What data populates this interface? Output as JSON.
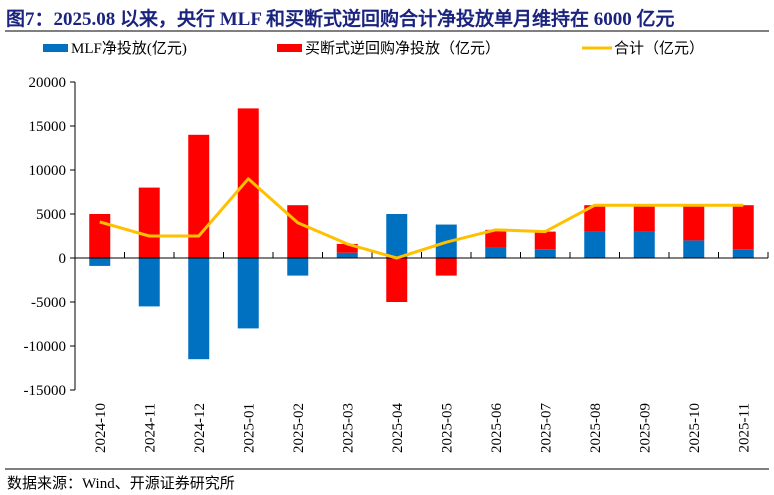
{
  "title": "图7：2025.08 以来，央行 MLF 和买断式逆回购合计净投放单月维持在 6000 亿元",
  "source": "数据来源：Wind、开源证券研究所",
  "chart_data": {
    "type": "bar",
    "stacked": true,
    "title": "",
    "xlabel": "",
    "ylabel": "",
    "ylim": [
      -15000,
      20000
    ],
    "yticks": [
      20000,
      15000,
      10000,
      5000,
      0,
      -5000,
      -10000,
      -15000
    ],
    "grid": false,
    "legend_position": "top",
    "categories": [
      "2024-10",
      "2024-11",
      "2024-12",
      "2025-01",
      "2025-02",
      "2025-03",
      "2025-04",
      "2025-05",
      "2025-06",
      "2025-07",
      "2025-08",
      "2025-09",
      "2025-10",
      "2025-11"
    ],
    "series": [
      {
        "name": "MLF净投放(亿元)",
        "type": "bar",
        "color": "#0070c0",
        "values": [
          -900,
          -5500,
          -11500,
          -8000,
          -2000,
          600,
          5000,
          3800,
          1200,
          1000,
          3000,
          3000,
          2000,
          1000
        ]
      },
      {
        "name": "买断式逆回购净投放（亿元）",
        "type": "bar",
        "color": "#ff0000",
        "values": [
          5000,
          8000,
          14000,
          17000,
          6000,
          1000,
          -5000,
          -2000,
          2000,
          2000,
          3000,
          3000,
          4000,
          5000
        ]
      },
      {
        "name": "合计（亿元）",
        "type": "line",
        "color": "#ffc000",
        "values": [
          4100,
          2500,
          2500,
          9000,
          4000,
          1600,
          0,
          1800,
          3200,
          3000,
          6000,
          6000,
          6000,
          6000
        ]
      }
    ]
  }
}
